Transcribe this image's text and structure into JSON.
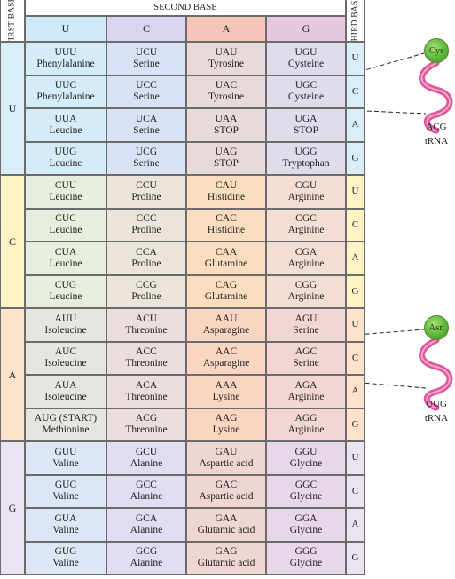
{
  "header": {
    "second_base_title": "SECOND BASE",
    "first_base_title": "FIRST BASE",
    "third_base_title": "THIRD BASE",
    "second_bases": [
      "U",
      "C",
      "A",
      "G"
    ]
  },
  "first_bases": [
    "U",
    "C",
    "A",
    "G"
  ],
  "third_bases": [
    "U",
    "C",
    "A",
    "G"
  ],
  "rows": [
    [
      [
        "UUU",
        "Phenylalanine"
      ],
      [
        "UCU",
        "Serine"
      ],
      [
        "UAU",
        "Tyrosine"
      ],
      [
        "UGU",
        "Cysteine"
      ]
    ],
    [
      [
        "UUC",
        "Phenylalanine"
      ],
      [
        "UCC",
        "Serine"
      ],
      [
        "UAC",
        "Tyrosine"
      ],
      [
        "UGC",
        "Cysteine"
      ]
    ],
    [
      [
        "UUA",
        "Leucine"
      ],
      [
        "UCA",
        "Serine"
      ],
      [
        "UAA",
        "STOP"
      ],
      [
        "UGA",
        "STOP"
      ]
    ],
    [
      [
        "UUG",
        "Leucine"
      ],
      [
        "UCG",
        "Serine"
      ],
      [
        "UAG",
        "STOP"
      ],
      [
        "UGG",
        "Tryptophan"
      ]
    ],
    [
      [
        "CUU",
        "Leucine"
      ],
      [
        "CCU",
        "Proline"
      ],
      [
        "CAU",
        "Histidine"
      ],
      [
        "CGU",
        "Arginine"
      ]
    ],
    [
      [
        "CUC",
        "Leucine"
      ],
      [
        "CCC",
        "Proline"
      ],
      [
        "CAC",
        "Histidine"
      ],
      [
        "CGC",
        "Arginine"
      ]
    ],
    [
      [
        "CUA",
        "Leucine"
      ],
      [
        "CCA",
        "Proline"
      ],
      [
        "CAA",
        "Glutamine"
      ],
      [
        "CGA",
        "Arginine"
      ]
    ],
    [
      [
        "CUG",
        "Leucine"
      ],
      [
        "CCG",
        "Proline"
      ],
      [
        "CAG",
        "Glutamine"
      ],
      [
        "CGG",
        "Arginine"
      ]
    ],
    [
      [
        "AUU",
        "Isoleucine"
      ],
      [
        "ACU",
        "Threonine"
      ],
      [
        "AAU",
        "Asparagine"
      ],
      [
        "AGU",
        "Serine"
      ]
    ],
    [
      [
        "AUC",
        "Isoleucine"
      ],
      [
        "ACC",
        "Threonine"
      ],
      [
        "AAC",
        "Asparagine"
      ],
      [
        "AGC",
        "Serine"
      ]
    ],
    [
      [
        "AUA",
        "Isoleucine"
      ],
      [
        "ACA",
        "Threonine"
      ],
      [
        "AAA",
        "Lysine"
      ],
      [
        "AGA",
        "Arginine"
      ]
    ],
    [
      [
        "AUG (START)",
        "Methionine"
      ],
      [
        "ACG",
        "Threonine"
      ],
      [
        "AAG",
        "Lysine"
      ],
      [
        "AGG",
        "Arginine"
      ]
    ],
    [
      [
        "GUU",
        "Valine"
      ],
      [
        "GCU",
        "Alanine"
      ],
      [
        "GAU",
        "Aspartic acid"
      ],
      [
        "GGU",
        "Glycine"
      ]
    ],
    [
      [
        "GUC",
        "Valine"
      ],
      [
        "GCC",
        "Alanine"
      ],
      [
        "GAC",
        "Aspartic acid"
      ],
      [
        "GGC",
        "Glycine"
      ]
    ],
    [
      [
        "GUA",
        "Valine"
      ],
      [
        "GCA",
        "Alanine"
      ],
      [
        "GAA",
        "Glutamic acid"
      ],
      [
        "GGA",
        "Glycine"
      ]
    ],
    [
      [
        "GUG",
        "Valine"
      ],
      [
        "GCG",
        "Alanine"
      ],
      [
        "GAG",
        "Glutamic acid"
      ],
      [
        "GGG",
        "Glycine"
      ]
    ]
  ],
  "trna": [
    {
      "amino_acid": "Cys",
      "anticodon": "ACG",
      "label": "tRNA"
    },
    {
      "amino_acid": "Asn",
      "anticodon": "UUG",
      "label": "tRNA"
    }
  ],
  "colors": {
    "row_U": "#d9eef9",
    "row_C": "#fdf3c4",
    "row_A": "#fde3cc",
    "row_G": "#e9e3f2",
    "col_U": "#cfe9f6",
    "col_C": "#d9d4ef",
    "col_A": "#f6c6b8",
    "col_G": "#e7c9df",
    "trna_ribbon": "#e0549b",
    "trna_ball": "#6cc143"
  }
}
